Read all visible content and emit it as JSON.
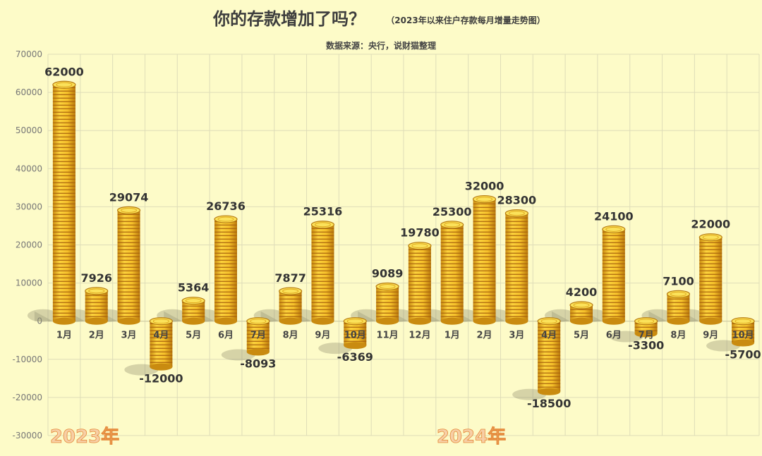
{
  "chart_data": {
    "type": "bar",
    "title": "你的存款增加了吗？",
    "subtitle": "（2023年以来住户存款每月增量走势图）",
    "source": "数据来源：央行，说财猫整理",
    "categories": [
      "1月",
      "2月",
      "3月",
      "4月",
      "5月",
      "6月",
      "7月",
      "8月",
      "9月",
      "10月",
      "11月",
      "12月",
      "1月",
      "2月",
      "3月",
      "4月",
      "5月",
      "6月",
      "7月",
      "8月",
      "9月",
      "10月"
    ],
    "values": [
      62000,
      7926,
      29074,
      -12000,
      5364,
      26736,
      -8093,
      7877,
      25316,
      -6369,
      9089,
      19780,
      25300,
      32000,
      28300,
      -18500,
      4200,
      24100,
      -3300,
      7100,
      22000,
      -5700
    ],
    "ylim": [
      -30000,
      70000
    ],
    "yticks": [
      "70000",
      "60000",
      "50000",
      "40000",
      "30000",
      "20000",
      "10000",
      "0",
      "-10000",
      "-20000",
      "-30000"
    ],
    "year_labels": [
      "2023年",
      "2024年"
    ],
    "grid": true,
    "colors": {
      "coin": "#f2c230",
      "coin_stripe": "#a8620c",
      "coin_top": "#fbe25a",
      "grid": "#dedcb8",
      "background": "#fdfbc8"
    }
  }
}
